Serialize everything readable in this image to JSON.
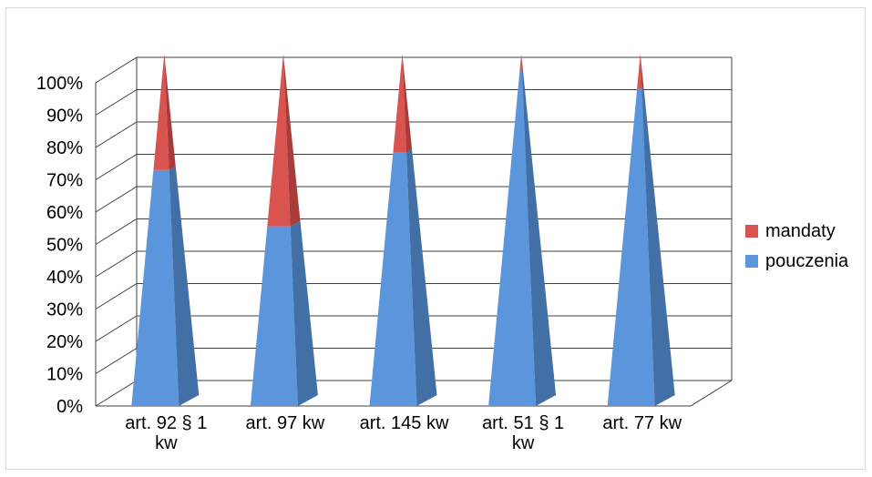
{
  "chart_data": {
    "type": "bar",
    "subtype": "3d-stacked-100-pyramid",
    "title": "",
    "xlabel": "",
    "ylabel": "",
    "ylim": [
      0,
      100
    ],
    "y_ticks": [
      "0%",
      "10%",
      "20%",
      "30%",
      "40%",
      "50%",
      "60%",
      "70%",
      "80%",
      "90%",
      "100%"
    ],
    "categories": [
      [
        "art. 92 § 1",
        "kw"
      ],
      [
        "art. 97 kw"
      ],
      [
        "art. 145 kw"
      ],
      [
        "art. 51 § 1",
        "kw"
      ],
      [
        "art. 77 kw"
      ]
    ],
    "series": [
      {
        "name": "pouczenia",
        "values": [
          67,
          51,
          72,
          95,
          90
        ]
      },
      {
        "name": "mandaty",
        "values": [
          33,
          49,
          28,
          5,
          10
        ]
      }
    ],
    "grid": true,
    "legend_position": "right",
    "colors": {
      "pouczenia": "#5b95dc",
      "pouczenia_side": "#416fa6",
      "mandaty": "#d95450",
      "mandaty_side": "#a83c3a",
      "grid": "#404040"
    }
  }
}
